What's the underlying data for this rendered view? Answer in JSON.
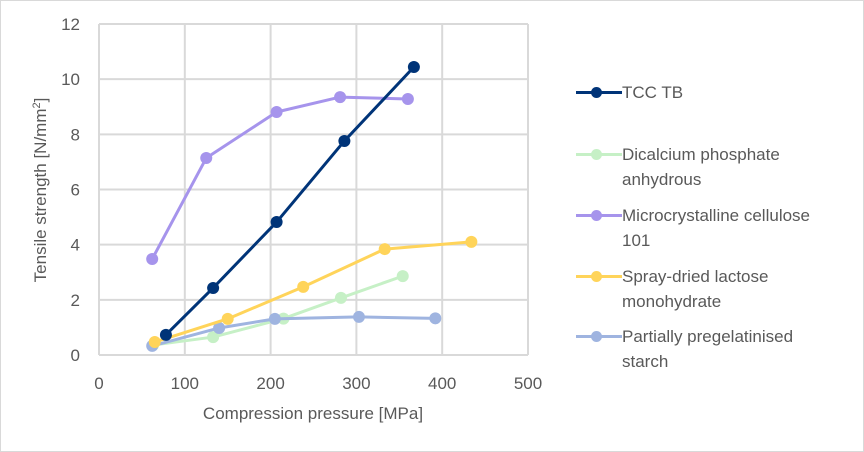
{
  "chart_data": {
    "type": "line",
    "title": "",
    "xlabel": "Compression pressure [MPa]",
    "ylabel": "Tensile strength [N/mm²]",
    "xlim": [
      0,
      500
    ],
    "ylim": [
      0,
      12
    ],
    "xticks": [
      "0",
      "100",
      "200",
      "300",
      "400",
      "500"
    ],
    "yticks": [
      "0",
      "2",
      "4",
      "6",
      "8",
      "10",
      "12"
    ],
    "grid": true,
    "legend_position": "right",
    "series": [
      {
        "name": "TCC TB",
        "color": "#003478",
        "x": [
          78,
          133,
          207,
          286,
          367
        ],
        "y": [
          0.73,
          2.43,
          4.82,
          7.76,
          10.44
        ]
      },
      {
        "name": "Dicalcium phosphate anhydrous",
        "color": "#c6f0c6",
        "x": [
          63,
          133,
          215,
          282,
          354
        ],
        "y": [
          0.36,
          0.65,
          1.32,
          2.07,
          2.86
        ]
      },
      {
        "name": "Microcrystalline cellulose 101",
        "color": "#a694ec",
        "x": [
          62,
          125,
          207,
          281,
          360
        ],
        "y": [
          3.48,
          7.14,
          8.81,
          9.35,
          9.28
        ]
      },
      {
        "name": "Spray-dried lactose monohydrate",
        "color": "#ffd45a",
        "x": [
          65,
          150,
          238,
          333,
          434
        ],
        "y": [
          0.47,
          1.31,
          2.47,
          3.84,
          4.1
        ]
      },
      {
        "name": "Partially pregelatinised starch",
        "color": "#9fb4e0",
        "x": [
          62,
          140,
          205,
          303,
          392
        ],
        "y": [
          0.33,
          0.98,
          1.31,
          1.38,
          1.33
        ]
      }
    ]
  },
  "legend": {
    "items": [
      {
        "lines": [
          "TCC TB"
        ]
      },
      {
        "lines": [
          "Dicalcium phosphate",
          "anhydrous"
        ]
      },
      {
        "lines": [
          "Microcrystalline cellulose",
          "101"
        ]
      },
      {
        "lines": [
          "Spray-dried lactose",
          "monohydrate"
        ]
      },
      {
        "lines": [
          "Partially pregelatinised",
          "starch"
        ]
      }
    ]
  }
}
